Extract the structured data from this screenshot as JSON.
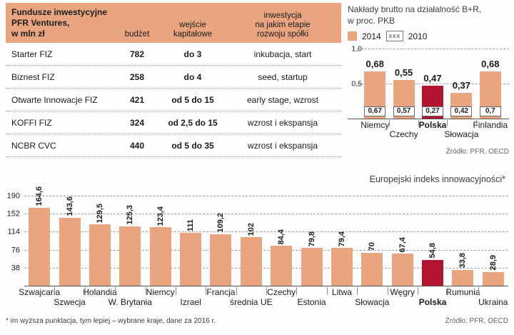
{
  "colors": {
    "salmon": "#e8a57f",
    "red": "#b2132e",
    "muted": "#3f3f3f",
    "source": "#666666"
  },
  "table": {
    "title": "Fundusze inwestycyjne\nPFR Ventures,\nw mln zł",
    "col_headers": [
      "budżet",
      "wejście\nkapitałowe",
      "inwestycja\nna jakim etapie\nrozwoju spółki"
    ],
    "rows": [
      {
        "name": "Starter FIZ",
        "budget": "782",
        "entry": "do 3",
        "stage": "inkubacja, start"
      },
      {
        "name": "Biznest FIZ",
        "budget": "258",
        "entry": "do 4",
        "stage": "seed, startup"
      },
      {
        "name": "Otwarte Innowacje FIZ",
        "budget": "421",
        "entry": "od 5 do 15",
        "stage": "early stage, wzrost"
      },
      {
        "name": "KOFFI FIZ",
        "budget": "324",
        "entry": "od 2,5 do 15",
        "stage": "wzrost i ekspansja"
      },
      {
        "name": "NCBR CVC",
        "budget": "440",
        "entry": "od 5 do 35",
        "stage": "wzrost i ekspansja"
      }
    ]
  },
  "chart_data": [
    {
      "type": "bar",
      "title": "Nakłady brutto na działalność B+R,\nw proc. PKB",
      "categories": [
        "Niemcy",
        "Czechy",
        "Polska",
        "Słowacja",
        "Finlandia"
      ],
      "series": [
        {
          "name": "2014",
          "values": [
            0.68,
            0.55,
            0.47,
            0.37,
            0.68
          ],
          "labels": [
            "0,68",
            "0,55",
            "0,47",
            "0,37",
            "0,68"
          ]
        },
        {
          "name": "2010",
          "values": [
            0.67,
            0.57,
            0.27,
            0.42,
            0.7
          ],
          "labels": [
            "0,67",
            "0,57",
            "0,27",
            "0,42",
            "0,7"
          ]
        }
      ],
      "ylim": [
        0,
        1.0
      ],
      "yticks": [
        1.0,
        0.5
      ],
      "ytick_labels": [
        "1,0",
        "0,5"
      ],
      "legend_hatch_text": "xxx",
      "highlight": "Polska",
      "source": "Źródło: PFR, OECD"
    },
    {
      "type": "bar",
      "title": "Europejski indeks innowacyjności*",
      "categories": [
        "Szwajcaria",
        "Szwecja",
        "Holandia",
        "W. Brytania",
        "Niemcy",
        "Izrael",
        "Francja",
        "średnia UE",
        "Czechy",
        "Estonia",
        "Litwa",
        "Słowacja",
        "Węgry",
        "Polska",
        "Rumunia",
        "Ukraina"
      ],
      "values": [
        164.6,
        143.6,
        129.5,
        125.3,
        123.4,
        111,
        109.2,
        102,
        84.4,
        79.8,
        79.4,
        70,
        67.4,
        54.8,
        33.8,
        28.9
      ],
      "value_labels": [
        "164,6",
        "143,6",
        "129,5",
        "125,3",
        "123,4",
        "111",
        "109,2",
        "102",
        "84,4",
        "79,8",
        "79,4",
        "70",
        "67,4",
        "54,8",
        "33,8",
        "28,9"
      ],
      "ylim": [
        0,
        190
      ],
      "yticks": [
        190,
        152,
        114,
        76,
        38
      ],
      "ytick_labels": [
        "190",
        "152",
        "114",
        "76",
        "38"
      ],
      "highlight": "Polska",
      "footnote": "* im wyższa punktacja, tym lepiej – wybrane kraje, dane za 2016 r.",
      "source": "Źródło: PFR, OECD"
    }
  ]
}
